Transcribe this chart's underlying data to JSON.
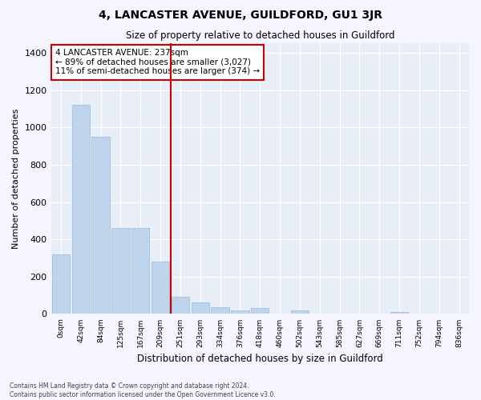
{
  "title": "4, LANCASTER AVENUE, GUILDFORD, GU1 3JR",
  "subtitle": "Size of property relative to detached houses in Guildford",
  "xlabel": "Distribution of detached houses by size in Guildford",
  "ylabel": "Number of detached properties",
  "bar_color": "#bed3ec",
  "bar_edge_color": "#9ab8da",
  "axes_bg_color": "#e8eef8",
  "fig_bg_color": "#f5f5ff",
  "grid_color": "#ffffff",
  "annotation_box_edgecolor": "#cc0000",
  "marker_line_color": "#cc0000",
  "annotation_line1": "4 LANCASTER AVENUE: 237sqm",
  "annotation_line2": "← 89% of detached houses are smaller (3,027)",
  "annotation_line3": "11% of semi-detached houses are larger (374) →",
  "footer_line1": "Contains HM Land Registry data © Crown copyright and database right 2024.",
  "footer_line2": "Contains public sector information licensed under the Open Government Licence v3.0.",
  "categories": [
    "0sqm",
    "42sqm",
    "84sqm",
    "125sqm",
    "167sqm",
    "209sqm",
    "251sqm",
    "293sqm",
    "334sqm",
    "376sqm",
    "418sqm",
    "460sqm",
    "502sqm",
    "543sqm",
    "585sqm",
    "627sqm",
    "669sqm",
    "711sqm",
    "752sqm",
    "794sqm",
    "836sqm"
  ],
  "values": [
    320,
    1120,
    950,
    460,
    460,
    280,
    90,
    60,
    35,
    20,
    30,
    2,
    20,
    2,
    2,
    2,
    2,
    10,
    2,
    2,
    2
  ],
  "marker_bin_index": 5,
  "ylim": [
    0,
    1450
  ],
  "yticks": [
    0,
    200,
    400,
    600,
    800,
    1000,
    1200,
    1400
  ]
}
